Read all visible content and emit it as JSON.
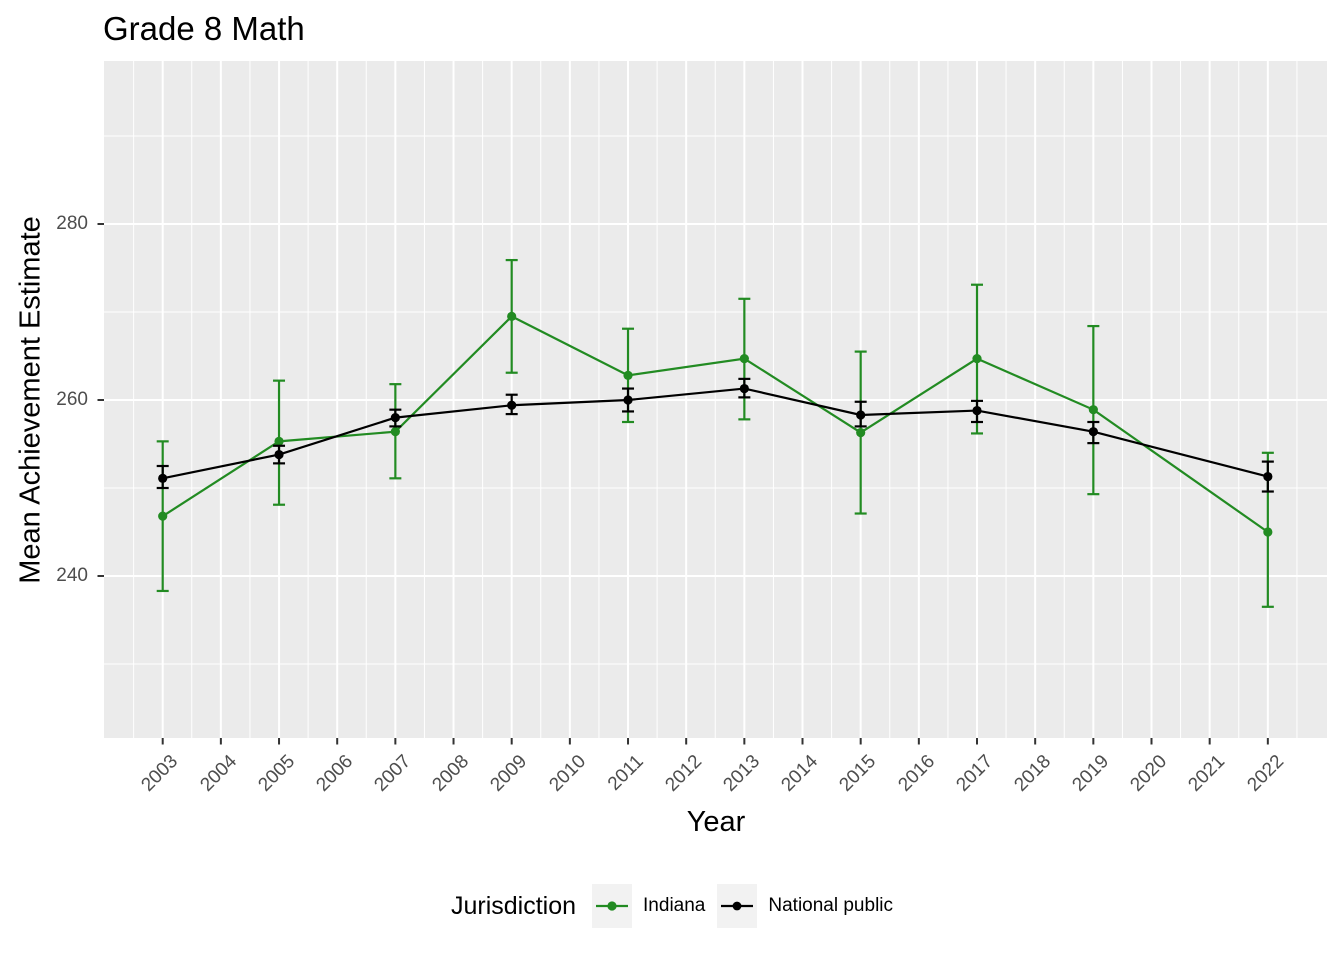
{
  "title": "Grade 8 Math",
  "axes": {
    "x_label": "Year",
    "y_label": "Mean Achievement Estimate"
  },
  "legend": {
    "title": "Jurisdiction",
    "items": [
      {
        "label": "Indiana",
        "color": "#228B22"
      },
      {
        "label": "National public",
        "color": "#000000"
      }
    ]
  },
  "colors": {
    "panel_background": "#EBEBEB",
    "grid_line": "#FFFFFF",
    "tick_mark": "#333333",
    "tick_text": "#4D4D4D",
    "legend_key_background": "#F2F2F2"
  },
  "chart_data": {
    "type": "line",
    "title": "Grade 8 Math",
    "xlabel": "Year",
    "ylabel": "Mean Achievement Estimate",
    "x_ticks": [
      2003,
      2004,
      2005,
      2006,
      2007,
      2008,
      2009,
      2010,
      2011,
      2012,
      2013,
      2014,
      2015,
      2016,
      2017,
      2018,
      2019,
      2020,
      2021,
      2022
    ],
    "y_axis": {
      "ticks": [
        240,
        260,
        280
      ],
      "minor_ticks": [
        230,
        250,
        270,
        290
      ]
    },
    "xlim": [
      2002,
      2023
    ],
    "ylim": [
      221.5,
      298.5
    ],
    "grid": true,
    "error_bars": true,
    "legend_position": "bottom",
    "legend_title": "Jurisdiction",
    "series": [
      {
        "name": "Indiana",
        "color": "#228B22",
        "points": [
          {
            "year": 2003,
            "value": 246.8,
            "ci_low": 238.3,
            "ci_high": 255.3
          },
          {
            "year": 2005,
            "value": 255.3,
            "ci_low": 248.1,
            "ci_high": 262.2
          },
          {
            "year": 2007,
            "value": 256.4,
            "ci_low": 251.1,
            "ci_high": 261.8
          },
          {
            "year": 2009,
            "value": 269.5,
            "ci_low": 263.1,
            "ci_high": 275.9
          },
          {
            "year": 2011,
            "value": 262.8,
            "ci_low": 257.5,
            "ci_high": 268.1
          },
          {
            "year": 2013,
            "value": 264.7,
            "ci_low": 257.8,
            "ci_high": 271.5
          },
          {
            "year": 2015,
            "value": 256.3,
            "ci_low": 247.1,
            "ci_high": 265.5
          },
          {
            "year": 2017,
            "value": 264.7,
            "ci_low": 256.2,
            "ci_high": 273.1
          },
          {
            "year": 2019,
            "value": 258.9,
            "ci_low": 249.3,
            "ci_high": 268.4
          },
          {
            "year": 2022,
            "value": 245.0,
            "ci_low": 236.5,
            "ci_high": 254.0
          }
        ]
      },
      {
        "name": "National public",
        "color": "#000000",
        "points": [
          {
            "year": 2003,
            "value": 251.1,
            "ci_low": 250.0,
            "ci_high": 252.5
          },
          {
            "year": 2005,
            "value": 253.8,
            "ci_low": 252.8,
            "ci_high": 254.8
          },
          {
            "year": 2007,
            "value": 258.0,
            "ci_low": 257.0,
            "ci_high": 258.9
          },
          {
            "year": 2009,
            "value": 259.4,
            "ci_low": 258.4,
            "ci_high": 260.6
          },
          {
            "year": 2011,
            "value": 260.0,
            "ci_low": 258.7,
            "ci_high": 261.3
          },
          {
            "year": 2013,
            "value": 261.3,
            "ci_low": 260.3,
            "ci_high": 262.4
          },
          {
            "year": 2015,
            "value": 258.3,
            "ci_low": 257.0,
            "ci_high": 259.8
          },
          {
            "year": 2017,
            "value": 258.8,
            "ci_low": 257.5,
            "ci_high": 259.9
          },
          {
            "year": 2019,
            "value": 256.4,
            "ci_low": 255.1,
            "ci_high": 257.5
          },
          {
            "year": 2022,
            "value": 251.3,
            "ci_low": 249.6,
            "ci_high": 253.0
          }
        ]
      }
    ]
  }
}
